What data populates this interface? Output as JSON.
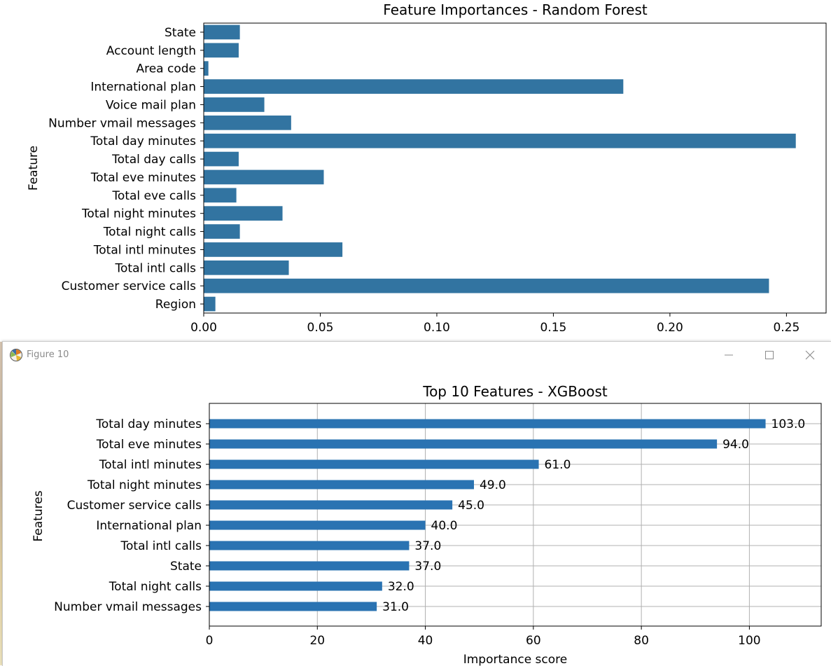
{
  "window": {
    "title": "Figure 10",
    "controls": {
      "minimize_icon": "minimize-icon",
      "maximize_icon": "maximize-icon",
      "close_icon": "close-icon"
    }
  },
  "colors": {
    "bar": "#3274a1",
    "xgb_bar": "#2a73b2",
    "grid": "#b0b0b0"
  },
  "chart_data": [
    {
      "type": "bar",
      "orientation": "horizontal",
      "title": "Feature Importances - Random Forest",
      "ylabel": "Feature",
      "xlabel": "",
      "categories": [
        "State",
        "Account length",
        "Area code",
        "International plan",
        "Voice mail plan",
        "Number vmail messages",
        "Total day minutes",
        "Total day calls",
        "Total eve minutes",
        "Total eve calls",
        "Total night minutes",
        "Total night calls",
        "Total intl minutes",
        "Total intl calls",
        "Customer service calls",
        "Region"
      ],
      "values": [
        0.0155,
        0.015,
        0.002,
        0.18,
        0.026,
        0.0375,
        0.254,
        0.015,
        0.0515,
        0.014,
        0.0338,
        0.0155,
        0.0595,
        0.0365,
        0.2425,
        0.005
      ],
      "xlim": [
        0,
        0.267
      ],
      "xticks": [
        "0.00",
        "0.05",
        "0.10",
        "0.15",
        "0.20",
        "0.25"
      ],
      "grid": false
    },
    {
      "type": "bar",
      "orientation": "horizontal",
      "title": "Top 10 Features - XGBoost",
      "xlabel": "Importance score",
      "ylabel": "Features",
      "categories": [
        "Total day minutes",
        "Total eve minutes",
        "Total intl minutes",
        "Total night minutes",
        "Customer service calls",
        "International plan",
        "Total intl calls",
        "State",
        "Total night calls",
        "Number vmail messages"
      ],
      "values": [
        103.0,
        94.0,
        61.0,
        49.0,
        45.0,
        40.0,
        37.0,
        37.0,
        32.0,
        31.0
      ],
      "value_labels": [
        "103.0",
        "94.0",
        "61.0",
        "49.0",
        "45.0",
        "40.0",
        "37.0",
        "37.0",
        "32.0",
        "31.0"
      ],
      "xlim": [
        0,
        113.3
      ],
      "xticks": [
        "0",
        "20",
        "40",
        "60",
        "80",
        "100"
      ],
      "grid": true
    }
  ]
}
